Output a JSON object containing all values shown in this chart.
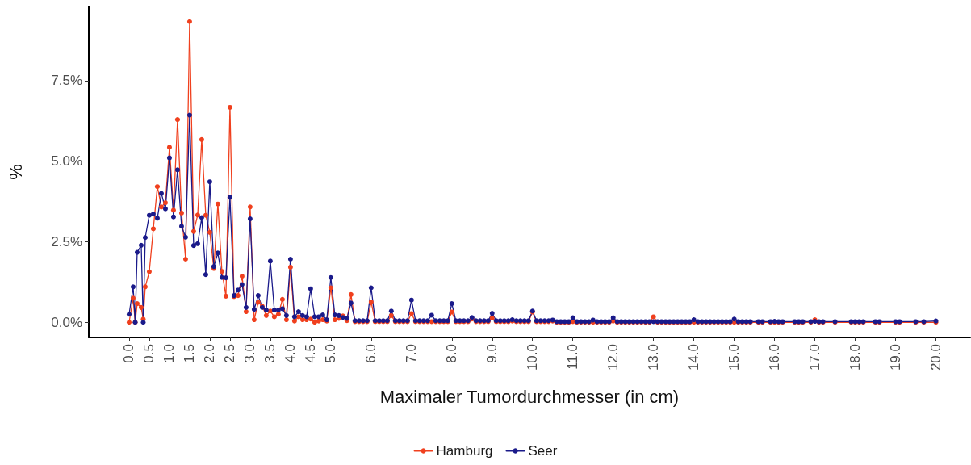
{
  "chart_data": {
    "type": "line",
    "xlabel": "Maximaler Tumordurchmesser (in cm)",
    "ylabel": "%",
    "xlim": [
      -1,
      20.85
    ],
    "ylim": [
      -0.47,
      9.8
    ],
    "xticks": [
      {
        "value": 0,
        "label": "0.0"
      },
      0.5,
      {
        "value": 1,
        "label": "1.0"
      },
      1.5,
      {
        "value": 2,
        "label": "2.0"
      },
      2.5,
      {
        "value": 3,
        "label": "3.0"
      },
      3.5,
      {
        "value": 4,
        "label": "4.0"
      },
      4.5,
      {
        "value": 5,
        "label": "5.0"
      },
      {
        "value": 6,
        "label": "6.0"
      },
      {
        "value": 7,
        "label": "7.0"
      },
      {
        "value": 8,
        "label": "8.0"
      },
      {
        "value": 9,
        "label": "9.0"
      },
      {
        "value": 10,
        "label": "10.0"
      },
      {
        "value": 11,
        "label": "11.0"
      },
      {
        "value": 12,
        "label": "12.0"
      },
      {
        "value": 13,
        "label": "13.0"
      },
      {
        "value": 14,
        "label": "14.0"
      },
      {
        "value": 15,
        "label": "15.0"
      },
      {
        "value": 16,
        "label": "16.0"
      },
      {
        "value": 17,
        "label": "17.0"
      },
      {
        "value": 18,
        "label": "18.0"
      },
      {
        "value": 19,
        "label": "19.0"
      },
      {
        "value": 20,
        "label": "20.0"
      }
    ],
    "yticks": [
      {
        "value": 0,
        "label": "0.0%"
      },
      {
        "value": 2.5,
        "label": "2.5%"
      },
      {
        "value": 5,
        "label": "5.0%"
      },
      {
        "value": 7.5,
        "label": "7.5%"
      }
    ],
    "grid": false,
    "legend": "bottom",
    "marker": "circle",
    "line_style": "solid",
    "x": [
      0,
      0.1,
      0.15,
      0.2,
      0.3,
      0.35,
      0.4,
      0.5,
      0.6,
      0.7,
      0.8,
      0.9,
      1.0,
      1.1,
      1.2,
      1.3,
      1.4,
      1.5,
      1.6,
      1.7,
      1.8,
      1.9,
      2.0,
      2.1,
      2.2,
      2.3,
      2.4,
      2.5,
      2.6,
      2.7,
      2.8,
      2.9,
      3.0,
      3.1,
      3.2,
      3.3,
      3.4,
      3.5,
      3.6,
      3.7,
      3.8,
      3.9,
      4.0,
      4.1,
      4.2,
      4.3,
      4.4,
      4.5,
      4.6,
      4.7,
      4.8,
      4.9,
      5.0,
      5.1,
      5.2,
      5.3,
      5.4,
      5.5,
      5.6,
      5.7,
      5.8,
      5.9,
      6.0,
      6.1,
      6.2,
      6.3,
      6.4,
      6.5,
      6.6,
      6.7,
      6.8,
      6.9,
      7.0,
      7.1,
      7.2,
      7.3,
      7.4,
      7.5,
      7.6,
      7.7,
      7.8,
      7.9,
      8.0,
      8.1,
      8.2,
      8.3,
      8.4,
      8.5,
      8.6,
      8.7,
      8.8,
      8.9,
      9.0,
      9.1,
      9.2,
      9.3,
      9.4,
      9.5,
      9.6,
      9.7,
      9.8,
      9.9,
      10.0,
      10.1,
      10.2,
      10.3,
      10.4,
      10.5,
      10.6,
      10.7,
      10.8,
      10.9,
      11.0,
      11.1,
      11.2,
      11.3,
      11.4,
      11.5,
      11.6,
      11.7,
      11.8,
      11.9,
      12.0,
      12.1,
      12.2,
      12.3,
      12.4,
      12.5,
      12.6,
      12.7,
      12.8,
      12.9,
      13.0,
      13.1,
      13.2,
      13.3,
      13.4,
      13.5,
      13.6,
      13.7,
      13.8,
      13.9,
      14.0,
      14.1,
      14.2,
      14.3,
      14.4,
      14.5,
      14.6,
      14.7,
      14.8,
      14.9,
      15.0,
      15.1,
      15.2,
      15.3,
      15.4,
      15.6,
      15.7,
      15.9,
      16.0,
      16.1,
      16.2,
      16.5,
      16.6,
      16.7,
      16.9,
      17.0,
      17.1,
      17.2,
      17.5,
      17.9,
      18.0,
      18.1,
      18.2,
      18.5,
      18.6,
      19.0,
      19.1,
      19.5,
      19.7,
      20.0
    ],
    "series": [
      {
        "name": "Hamburg",
        "color": "#f0401e",
        "values": [
          0,
          0.75,
          0,
          0.58,
          0.46,
          0.1,
          1.1,
          1.57,
          2.9,
          4.21,
          3.58,
          3.71,
          5.43,
          3.48,
          6.29,
          3.39,
          1.96,
          9.33,
          2.82,
          3.33,
          5.67,
          3.32,
          2.79,
          1.67,
          3.67,
          1.58,
          0.81,
          6.67,
          0.8,
          0.83,
          1.43,
          0.33,
          3.58,
          0.08,
          0.62,
          0.5,
          0.21,
          0.35,
          0.17,
          0.25,
          0.71,
          0.08,
          1.71,
          0.04,
          0.17,
          0.08,
          0.08,
          0.1,
          0,
          0.04,
          0.08,
          0.04,
          1.07,
          0.08,
          0.12,
          0.2,
          0.05,
          0.86,
          0.02,
          0.02,
          0.02,
          0.02,
          0.63,
          0.02,
          0.02,
          0.02,
          0.02,
          0.21,
          0.02,
          0.02,
          0.02,
          0.02,
          0.27,
          0.02,
          0.02,
          0.02,
          0.02,
          0.02,
          0.02,
          0.02,
          0.02,
          0.02,
          0.32,
          0.02,
          0.02,
          0.02,
          0.02,
          0.1,
          0.02,
          0.02,
          0.02,
          0.02,
          0.13,
          0.02,
          0.02,
          0.02,
          0.02,
          0.04,
          0.02,
          0.02,
          0.02,
          0.02,
          0.32,
          0.02,
          0.02,
          0.02,
          0.02,
          0.04,
          0,
          0,
          0,
          0,
          0.02,
          0,
          0,
          0,
          0,
          0,
          0,
          0,
          0,
          0,
          0.04,
          0,
          0,
          0,
          0,
          0,
          0,
          0,
          0,
          0,
          0.17,
          0,
          0,
          0,
          0,
          0,
          0,
          0,
          0,
          0,
          0,
          0,
          0,
          0,
          0,
          0,
          0,
          0,
          0,
          0,
          0,
          0,
          0,
          0,
          0,
          0,
          0,
          0,
          0,
          0,
          0,
          0,
          0,
          0,
          0,
          0.08,
          0,
          0,
          0,
          0,
          0,
          0,
          0,
          0,
          0,
          0,
          0,
          0,
          0,
          0
        ]
      },
      {
        "name": "Seer",
        "color": "#1a1a8a",
        "values": [
          0.25,
          1.1,
          0,
          2.17,
          2.39,
          0,
          2.63,
          3.32,
          3.36,
          3.23,
          4.0,
          3.52,
          5.1,
          3.27,
          4.73,
          2.98,
          2.64,
          6.43,
          2.38,
          2.44,
          3.25,
          1.48,
          4.36,
          1.73,
          2.15,
          1.39,
          1.38,
          3.88,
          0.83,
          1.0,
          1.17,
          0.46,
          3.21,
          0.4,
          0.83,
          0.46,
          0.38,
          1.9,
          0.38,
          0.38,
          0.42,
          0.21,
          1.96,
          0.17,
          0.33,
          0.21,
          0.17,
          1.04,
          0.17,
          0.17,
          0.23,
          0.08,
          1.39,
          0.23,
          0.21,
          0.15,
          0.12,
          0.6,
          0.05,
          0.05,
          0.05,
          0.05,
          1.07,
          0.05,
          0.05,
          0.05,
          0.05,
          0.35,
          0.05,
          0.05,
          0.05,
          0.05,
          0.69,
          0.05,
          0.05,
          0.05,
          0.05,
          0.22,
          0.05,
          0.05,
          0.05,
          0.05,
          0.58,
          0.05,
          0.05,
          0.05,
          0.05,
          0.15,
          0.05,
          0.05,
          0.05,
          0.05,
          0.28,
          0.05,
          0.05,
          0.05,
          0.05,
          0.08,
          0.05,
          0.05,
          0.05,
          0.05,
          0.35,
          0.05,
          0.05,
          0.05,
          0.05,
          0.07,
          0.02,
          0.02,
          0.02,
          0.02,
          0.14,
          0.02,
          0.02,
          0.02,
          0.02,
          0.07,
          0.02,
          0.02,
          0.02,
          0.02,
          0.14,
          0.02,
          0.02,
          0.02,
          0.02,
          0.02,
          0.02,
          0.02,
          0.02,
          0.02,
          0.02,
          0.02,
          0.02,
          0.02,
          0.02,
          0.02,
          0.02,
          0.02,
          0.02,
          0.02,
          0.08,
          0.02,
          0.02,
          0.02,
          0.02,
          0.02,
          0.02,
          0.02,
          0.02,
          0.02,
          0.1,
          0.02,
          0.02,
          0.02,
          0.02,
          0.02,
          0.02,
          0.02,
          0.03,
          0.02,
          0.02,
          0.02,
          0.02,
          0.02,
          0.02,
          0.03,
          0.02,
          0.02,
          0.02,
          0.02,
          0.02,
          0.02,
          0.02,
          0.02,
          0.02,
          0.02,
          0.02,
          0.02,
          0.02,
          0.04
        ]
      }
    ]
  }
}
